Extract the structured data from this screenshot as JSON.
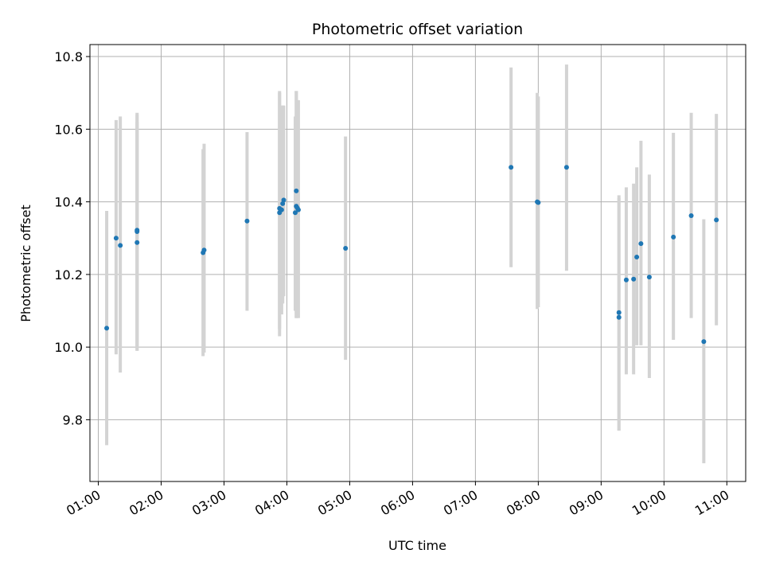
{
  "chart_data": {
    "type": "scatter",
    "title": "Photometric offset variation",
    "xlabel": "UTC time",
    "ylabel": "Photometric offset",
    "xlim": [
      "00:52",
      "11:18"
    ],
    "ylim": [
      9.63,
      10.833
    ],
    "x_ticks": [
      "01:00",
      "02:00",
      "03:00",
      "04:00",
      "05:00",
      "06:00",
      "07:00",
      "08:00",
      "09:00",
      "10:00",
      "11:00"
    ],
    "y_ticks": [
      9.8,
      10.0,
      10.2,
      10.4,
      10.6,
      10.8
    ],
    "grid": true,
    "series": [
      {
        "marker_color": "#1f77b4",
        "errorbar_color": "#d3d3d3",
        "points": [
          {
            "x": "01:08",
            "y": 10.052,
            "ylow": 9.73,
            "yhigh": 10.375
          },
          {
            "x": "01:17",
            "y": 10.3,
            "ylow": 9.98,
            "yhigh": 10.625
          },
          {
            "x": "01:21",
            "y": 10.28,
            "ylow": 9.93,
            "yhigh": 10.635
          },
          {
            "x": "01:37",
            "y": 10.322,
            "ylow": 9.99,
            "yhigh": 10.645
          },
          {
            "x": "01:37",
            "y": 10.318,
            "ylow": 10.0,
            "yhigh": 10.64
          },
          {
            "x": "01:37",
            "y": 10.288,
            "ylow": 9.99,
            "yhigh": 10.62
          },
          {
            "x": "02:40",
            "y": 10.26,
            "ylow": 9.975,
            "yhigh": 10.545
          },
          {
            "x": "02:41",
            "y": 10.267,
            "ylow": 9.985,
            "yhigh": 10.56
          },
          {
            "x": "03:22",
            "y": 10.347,
            "ylow": 10.1,
            "yhigh": 10.592
          },
          {
            "x": "03:53",
            "y": 10.37,
            "ylow": 10.03,
            "yhigh": 10.705
          },
          {
            "x": "03:53",
            "y": 10.382,
            "ylow": 10.05,
            "yhigh": 10.7
          },
          {
            "x": "03:55",
            "y": 10.378,
            "ylow": 10.09,
            "yhigh": 10.665
          },
          {
            "x": "03:56",
            "y": 10.395,
            "ylow": 10.12,
            "yhigh": 10.665
          },
          {
            "x": "03:57",
            "y": 10.405,
            "ylow": 10.14,
            "yhigh": 10.665
          },
          {
            "x": "04:08",
            "y": 10.37,
            "ylow": 10.1,
            "yhigh": 10.635
          },
          {
            "x": "04:09",
            "y": 10.388,
            "ylow": 10.08,
            "yhigh": 10.705
          },
          {
            "x": "04:09",
            "y": 10.43,
            "ylow": 10.08,
            "yhigh": 10.705
          },
          {
            "x": "04:10",
            "y": 10.383,
            "ylow": 10.08,
            "yhigh": 10.68
          },
          {
            "x": "04:11",
            "y": 10.378,
            "ylow": 10.08,
            "yhigh": 10.68
          },
          {
            "x": "04:56",
            "y": 10.272,
            "ylow": 9.965,
            "yhigh": 10.58
          },
          {
            "x": "07:34",
            "y": 10.495,
            "ylow": 10.22,
            "yhigh": 10.77
          },
          {
            "x": "07:59",
            "y": 10.4,
            "ylow": 10.105,
            "yhigh": 10.7
          },
          {
            "x": "08:00",
            "y": 10.398,
            "ylow": 10.11,
            "yhigh": 10.69
          },
          {
            "x": "08:27",
            "y": 10.495,
            "ylow": 10.21,
            "yhigh": 10.778
          },
          {
            "x": "09:17",
            "y": 10.095,
            "ylow": 9.77,
            "yhigh": 10.418
          },
          {
            "x": "09:17",
            "y": 10.082,
            "ylow": 9.77,
            "yhigh": 10.41
          },
          {
            "x": "09:24",
            "y": 10.185,
            "ylow": 9.925,
            "yhigh": 10.44
          },
          {
            "x": "09:31",
            "y": 10.187,
            "ylow": 9.925,
            "yhigh": 10.45
          },
          {
            "x": "09:34",
            "y": 10.248,
            "ylow": 10.005,
            "yhigh": 10.495
          },
          {
            "x": "09:38",
            "y": 10.285,
            "ylow": 10.005,
            "yhigh": 10.568
          },
          {
            "x": "09:46",
            "y": 10.193,
            "ylow": 9.915,
            "yhigh": 10.475
          },
          {
            "x": "10:09",
            "y": 10.303,
            "ylow": 10.02,
            "yhigh": 10.59
          },
          {
            "x": "10:26",
            "y": 10.362,
            "ylow": 10.08,
            "yhigh": 10.645
          },
          {
            "x": "10:38",
            "y": 10.015,
            "ylow": 9.68,
            "yhigh": 10.352
          },
          {
            "x": "10:50",
            "y": 10.35,
            "ylow": 10.06,
            "yhigh": 10.642
          }
        ]
      }
    ]
  }
}
